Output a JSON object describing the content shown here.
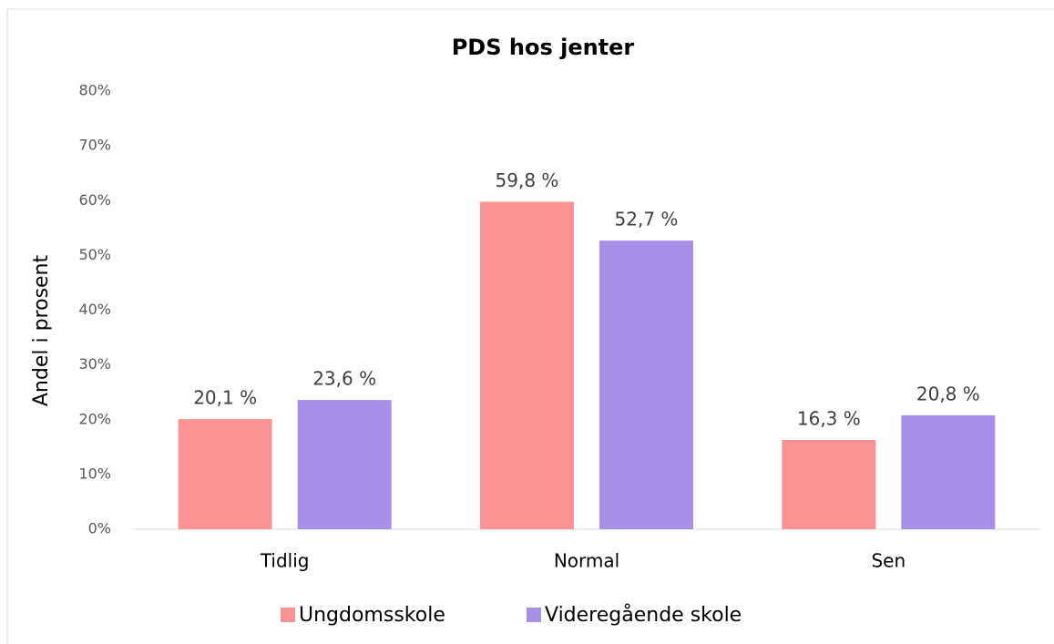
{
  "chart_data": {
    "type": "bar",
    "title": "PDS hos jenter",
    "y_label": "Andel i prosent",
    "categories": [
      "Tidlig",
      "Normal",
      "Sen"
    ],
    "series": [
      {
        "name": "Ungdomsskole",
        "color": "#fa9393",
        "values": [
          20.1,
          59.8,
          16.3
        ],
        "value_labels": [
          "20,1 %",
          "59,8 %",
          "16,3 %"
        ]
      },
      {
        "name": "Videregående skole",
        "color": "#a78fe8",
        "values": [
          23.6,
          52.7,
          20.8
        ],
        "value_labels": [
          "23,6 %",
          "52,7 %",
          "20,8 %"
        ]
      }
    ],
    "ylim": [
      0,
      80
    ],
    "yticks": [
      {
        "value": 0,
        "label": "0%"
      },
      {
        "value": 10,
        "label": "10%"
      },
      {
        "value": 20,
        "label": "20%"
      },
      {
        "value": 30,
        "label": "30%"
      },
      {
        "value": 40,
        "label": "40%"
      },
      {
        "value": 50,
        "label": "50%"
      },
      {
        "value": 60,
        "label": "60%"
      },
      {
        "value": 70,
        "label": "70%"
      },
      {
        "value": 80,
        "label": "80%"
      }
    ],
    "grid": false,
    "legend": "bottom"
  }
}
